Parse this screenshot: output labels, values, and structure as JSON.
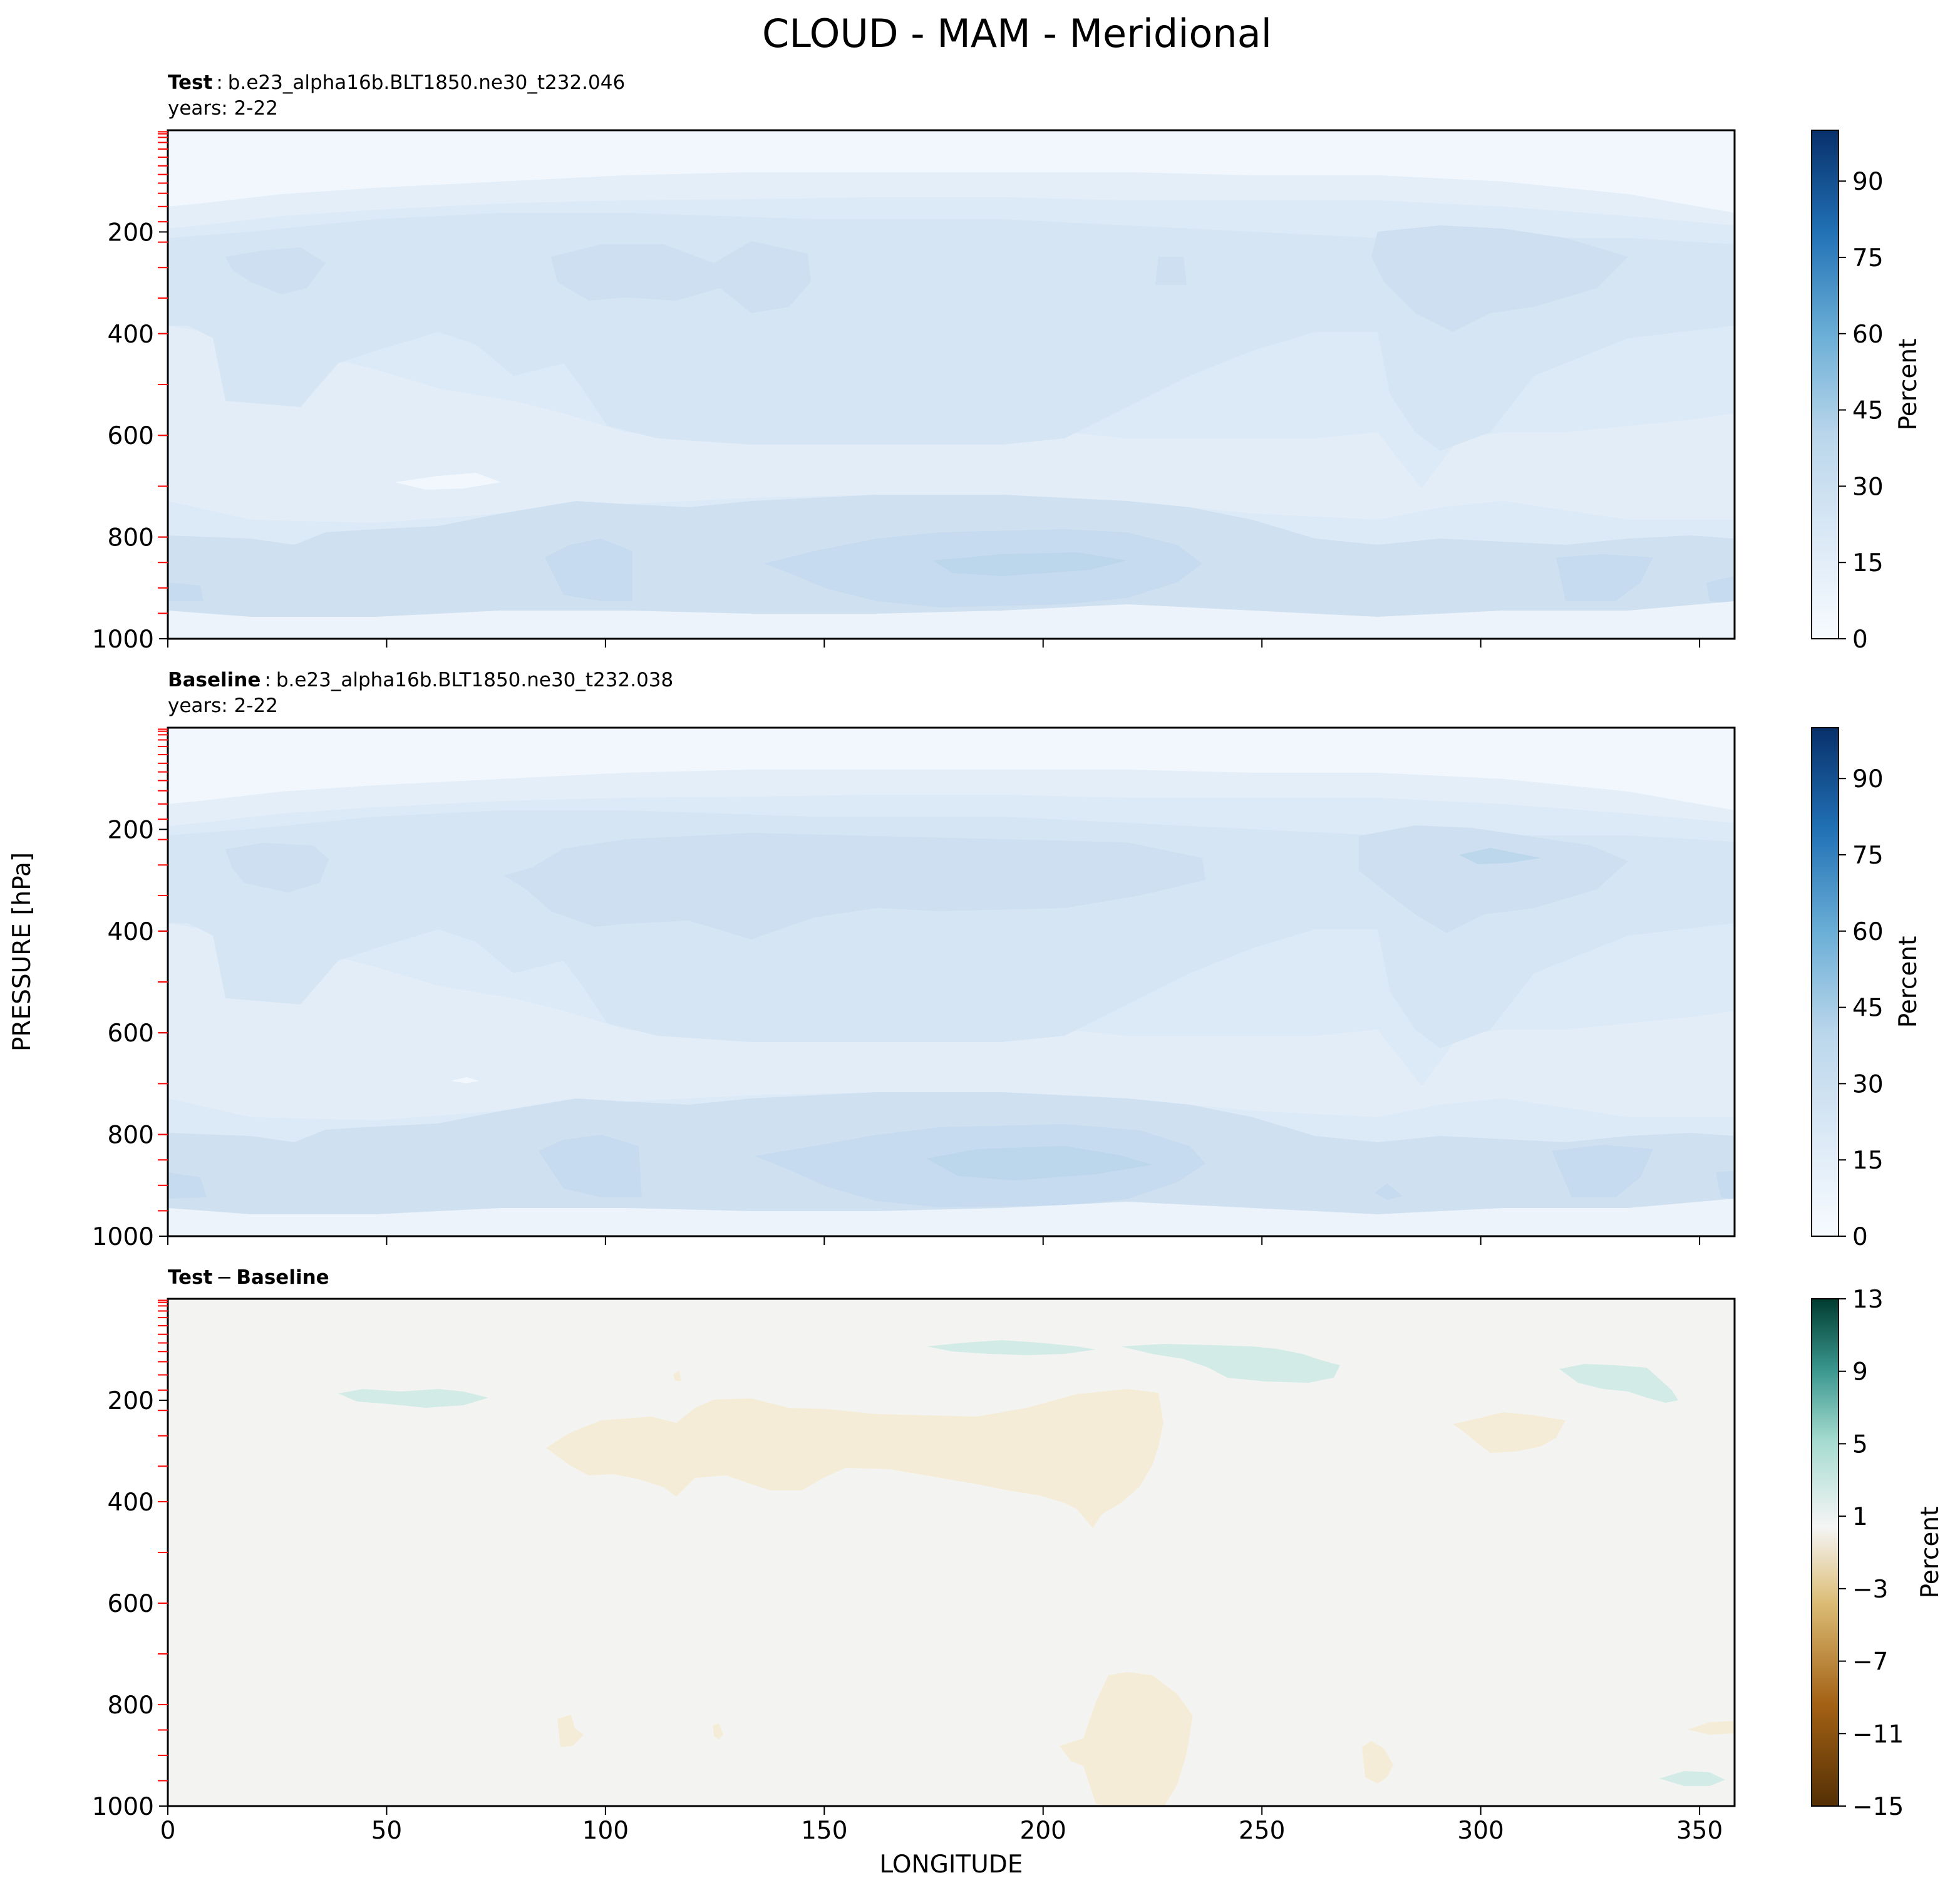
{
  "chart_data": {
    "type": "contour",
    "suptitle": "CLOUD - MAM - Meridional",
    "shared": {
      "xlabel": "LONGITUDE",
      "ylabel": "PRESSURE [hPa]",
      "x_ticks": [
        0,
        50,
        100,
        150,
        200,
        250,
        300,
        350
      ],
      "xlim": [
        0,
        358
      ],
      "y_ticks": [
        200,
        400,
        600,
        800,
        1000
      ],
      "ylim": [
        1000,
        0
      ],
      "y_axis_inverted": true
    },
    "panels": [
      {
        "id": "test",
        "title_bold": "Test",
        "title_sep": ":",
        "title_case": "b.e23_alpha16b.BLT1850.ne30_t232.046",
        "subtitle": "years: 2-22",
        "colormap": "Blues",
        "colorbar_label": "Percent",
        "colorbar_ticks": [
          0,
          15,
          30,
          45,
          60,
          75,
          90
        ],
        "colorbar_range": [
          0,
          100
        ],
        "colorbar_levels": [
          0,
          5,
          10,
          15,
          20,
          25,
          30,
          35,
          40,
          45,
          50,
          55,
          60,
          65,
          70,
          75,
          80,
          85,
          90,
          95,
          100
        ],
        "field_summary": "Cloud fraction ~5-15% above 150 hPa; ~15-25% band 200-350 hPa with maxima near 20-30E, 90-150E and 290-330E; ~20-30% low cloud 800-950 hPa with maximum near 180-230E."
      },
      {
        "id": "baseline",
        "title_bold": "Baseline",
        "title_sep": ":",
        "title_case": "b.e23_alpha16b.BLT1850.ne30_t232.038",
        "subtitle": "years: 2-22",
        "colormap": "Blues",
        "colorbar_label": "Percent",
        "colorbar_ticks": [
          0,
          15,
          30,
          45,
          60,
          75,
          90
        ],
        "colorbar_range": [
          0,
          100
        ],
        "colorbar_levels": [
          0,
          5,
          10,
          15,
          20,
          25,
          30,
          35,
          40,
          45,
          50,
          55,
          60,
          65,
          70,
          75,
          80,
          85,
          90,
          95,
          100
        ],
        "field_summary": "Very similar to Test; upper-level band 200-350 hPa spans ~80-240E more broadly; low cloud maximum near 180-230E at ~850 hPa."
      },
      {
        "id": "diff",
        "title_bold_left": "Test",
        "title_minus": "−",
        "title_bold_right": "Baseline",
        "colormap": "BrBG",
        "colorbar_label": "Percent",
        "colorbar_ticks": [
          -15,
          -11,
          -7,
          -3,
          1,
          5,
          9,
          13
        ],
        "colorbar_range": [
          -15,
          13
        ],
        "colorbar_levels": [
          -15,
          -13,
          -11,
          -9,
          -7,
          -5,
          -3,
          -1,
          1,
          3,
          5,
          7,
          9,
          11,
          13
        ],
        "field_summary": "Differences mostly within ±1%; negative (-1 to -3) region 90-230E at 200-450 hPa and near 215-235E at 750-950 hPa; small positive (1-3) patches near 40-70E at 200 hPa, 175-270E at 100-150 hPa, 320-345E at 150-200 hPa."
      }
    ]
  },
  "colors": {
    "test_baseline_scale": [
      "#f7fbff",
      "#e3eef9",
      "#d0e1f2",
      "#b7d4ea",
      "#94c4df",
      "#6aaed6",
      "#4a98c9",
      "#2e7ebc",
      "#1764ab",
      "#08306b"
    ],
    "diff_scale": [
      "#543005",
      "#7b4a09",
      "#a36114",
      "#c28637",
      "#dbbc75",
      "#ecd8a7",
      "#f5e8cb",
      "#f5f5f5",
      "#d3ece8",
      "#a5dbd0",
      "#6cbdb0",
      "#3a978e",
      "#0f6f64",
      "#003c30"
    ],
    "marker_ticks": "#ff0000"
  }
}
